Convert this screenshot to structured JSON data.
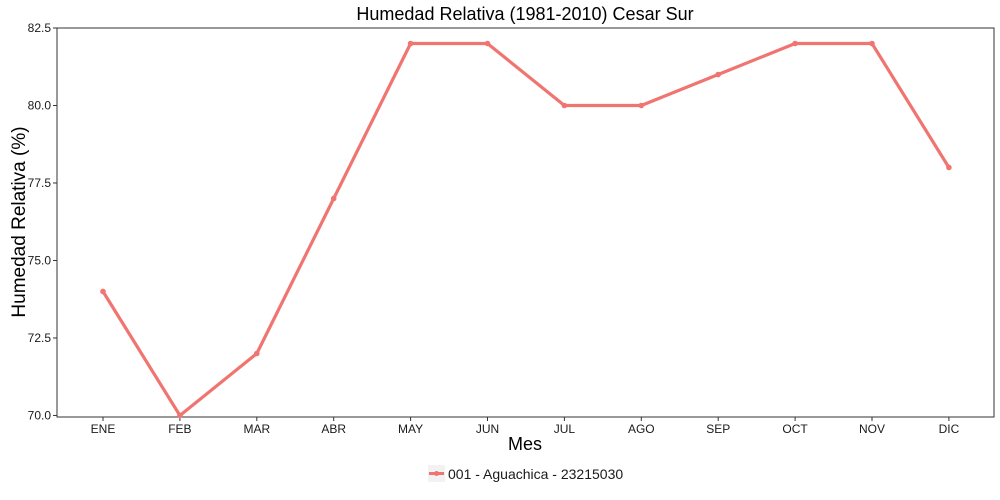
{
  "chart_data": {
    "type": "line",
    "title": "Humedad Relativa (1981-2010)  Cesar Sur",
    "xlabel": "Mes",
    "ylabel": "Humedad Relativa  (%)",
    "categories": [
      "ENE",
      "FEB",
      "MAR",
      "ABR",
      "MAY",
      "JUN",
      "JUL",
      "AGO",
      "SEP",
      "OCT",
      "NOV",
      "DIC"
    ],
    "series": [
      {
        "name": "001 - Aguachica - 23215030",
        "color": "#f07470",
        "values": [
          74,
          70,
          72,
          77,
          82,
          82,
          80,
          80,
          81,
          82,
          82,
          78
        ]
      }
    ],
    "ylim": [
      69.95,
      82.5
    ],
    "yticks": [
      "70.0",
      "72.5",
      "75.0",
      "77.5",
      "80.0",
      "82.5"
    ],
    "grid": false,
    "legend_position": "bottom"
  }
}
